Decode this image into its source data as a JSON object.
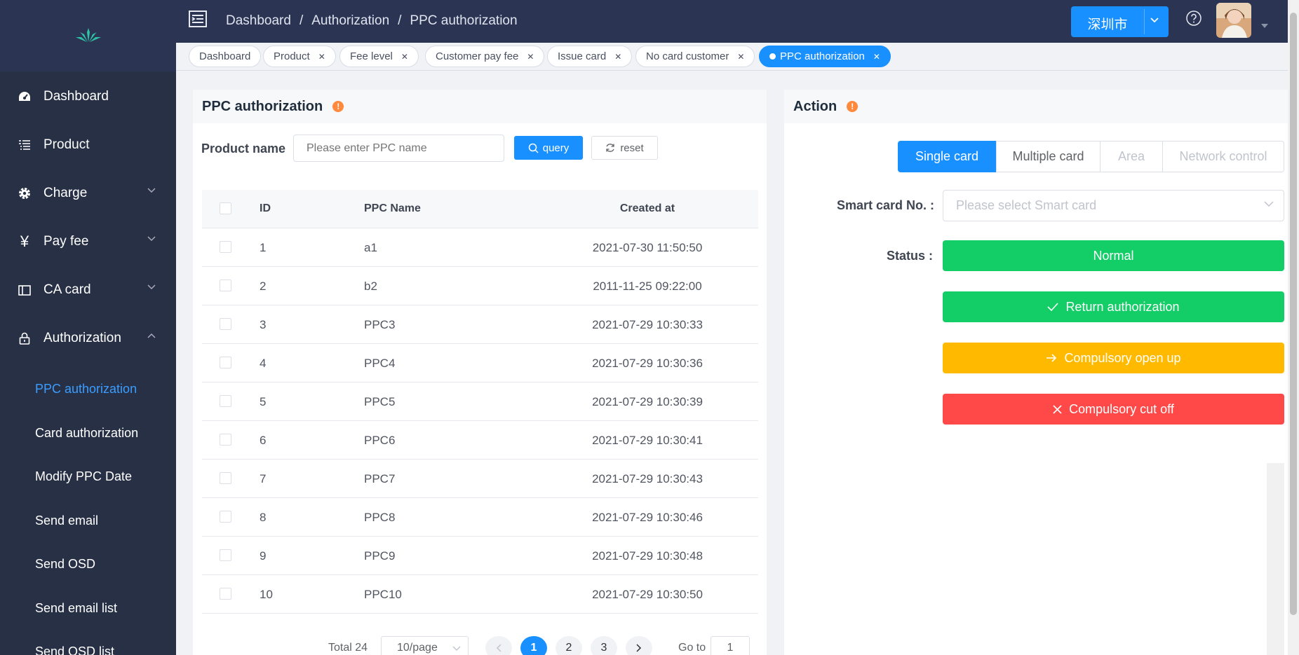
{
  "sidebar": {
    "menu": [
      {
        "label": "Dashboard",
        "icon": "dashboard-icon"
      },
      {
        "label": "Product",
        "icon": "list-icon"
      },
      {
        "label": "Charge",
        "icon": "gear-icon"
      },
      {
        "label": "Pay fee",
        "icon": "yen-icon"
      },
      {
        "label": "CA card",
        "icon": "card-icon"
      },
      {
        "label": "Authorization",
        "icon": "lock-icon"
      }
    ],
    "submenu": [
      {
        "label": "PPC authorization"
      },
      {
        "label": "Card authorization"
      },
      {
        "label": "Modify PPC Date"
      },
      {
        "label": "Send email"
      },
      {
        "label": "Send OSD"
      },
      {
        "label": "Send email list"
      },
      {
        "label": "Send OSD list"
      }
    ]
  },
  "header": {
    "breadcrumb": [
      "Dashboard",
      "Authorization",
      "PPC authorization"
    ],
    "city": "深圳市"
  },
  "tags": [
    {
      "label": "Dashboard"
    },
    {
      "label": "Product"
    },
    {
      "label": "Fee level"
    },
    {
      "label": "Customer pay fee"
    },
    {
      "label": "Issue card"
    },
    {
      "label": "No card customer"
    },
    {
      "label": "PPC authorization"
    }
  ],
  "left_panel": {
    "title": "PPC authorization",
    "search_label": "Product name",
    "search_placeholder": "Please enter PPC name",
    "query_label": "query",
    "reset_label": "reset",
    "columns": {
      "id": "ID",
      "name": "PPC Name",
      "created": "Created at"
    },
    "rows": [
      {
        "id": "1",
        "name": "a1",
        "created": "2021-07-30 11:50:50"
      },
      {
        "id": "2",
        "name": "b2",
        "created": "2011-11-25 09:22:00"
      },
      {
        "id": "3",
        "name": "PPC3",
        "created": "2021-07-29 10:30:33"
      },
      {
        "id": "4",
        "name": "PPC4",
        "created": "2021-07-29 10:30:36"
      },
      {
        "id": "5",
        "name": "PPC5",
        "created": "2021-07-29 10:30:39"
      },
      {
        "id": "6",
        "name": "PPC6",
        "created": "2021-07-29 10:30:41"
      },
      {
        "id": "7",
        "name": "PPC7",
        "created": "2021-07-29 10:30:43"
      },
      {
        "id": "8",
        "name": "PPC8",
        "created": "2021-07-29 10:30:46"
      },
      {
        "id": "9",
        "name": "PPC9",
        "created": "2021-07-29 10:30:48"
      },
      {
        "id": "10",
        "name": "PPC10",
        "created": "2021-07-29 10:30:50"
      }
    ],
    "pagination": {
      "total": "Total 24",
      "page_size": "10/page",
      "pages": [
        "1",
        "2",
        "3"
      ],
      "goto_label": "Go to",
      "goto_value": "1"
    }
  },
  "right_panel": {
    "title": "Action",
    "segments": [
      "Single card",
      "Multiple card",
      "Area",
      "Network control"
    ],
    "smartcard_label": "Smart card No. :",
    "smartcard_placeholder": "Please select Smart card",
    "status_label": "Status :",
    "status_value": "Normal",
    "return_label": "Return authorization",
    "open_label": "Compulsory open up",
    "cut_label": "Compulsory cut off"
  },
  "colors": {
    "sidebar_bg": "#283046",
    "primary": "#1890ff",
    "success": "#13ce66",
    "warning": "#ffba00",
    "danger": "#ff4949"
  }
}
